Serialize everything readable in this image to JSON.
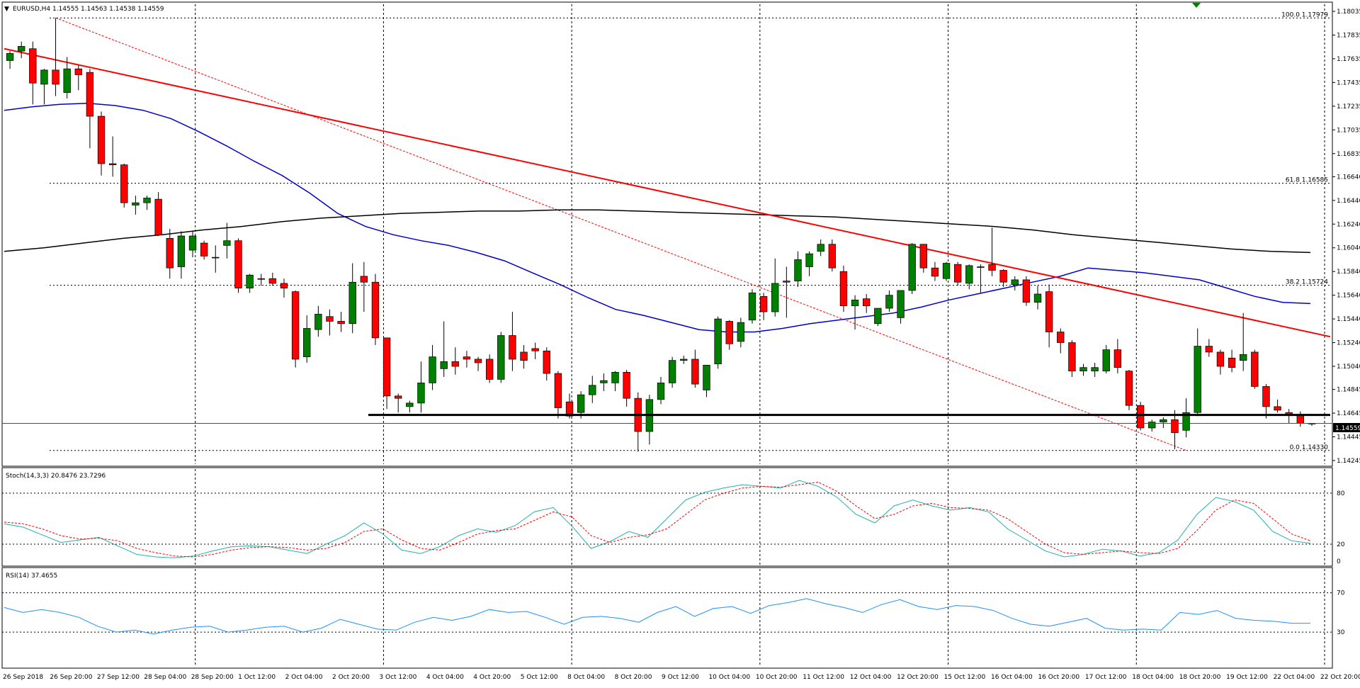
{
  "chart_data": {
    "type": "candlestick",
    "symbol": "EURUSD",
    "timeframe": "H4",
    "header_label": "EURUSD,H4  1.14555 1.14563 1.14538 1.14559",
    "last_price": "1.14559",
    "x_labels": [
      "26 Sep 2018",
      "26 Sep 20:00",
      "27 Sep 12:00",
      "28 Sep 04:00",
      "28 Sep 20:00",
      "1 Oct 12:00",
      "2 Oct 04:00",
      "2 Oct 20:00",
      "3 Oct 12:00",
      "4 Oct 04:00",
      "4 Oct 20:00",
      "5 Oct 12:00",
      "8 Oct 04:00",
      "8 Oct 20:00",
      "9 Oct 12:00",
      "10 Oct 04:00",
      "10 Oct 20:00",
      "11 Oct 12:00",
      "12 Oct 04:00",
      "12 Oct 20:00",
      "15 Oct 12:00",
      "16 Oct 04:00",
      "16 Oct 20:00",
      "17 Oct 12:00",
      "18 Oct 04:00",
      "18 Oct 20:00",
      "19 Oct 12:00",
      "22 Oct 04:00",
      "22 Oct 20:00"
    ],
    "y_ticks_main": [
      "1.18035",
      "1.17835",
      "1.17635",
      "1.17435",
      "1.17235",
      "1.17035",
      "1.16835",
      "1.16640",
      "1.16440",
      "1.16240",
      "1.16040",
      "1.15840",
      "1.15640",
      "1.15440",
      "1.15240",
      "1.15040",
      "1.14845",
      "1.14645",
      "1.14445",
      "1.14245"
    ],
    "y_range_main": [
      1.14215,
      1.18095
    ],
    "candles": [
      {
        "o": 1.1762,
        "h": 1.177,
        "l": 1.1755,
        "c": 1.1768
      },
      {
        "o": 1.177,
        "h": 1.1778,
        "l": 1.1764,
        "c": 1.1774
      },
      {
        "o": 1.1772,
        "h": 1.1778,
        "l": 1.1725,
        "c": 1.1743
      },
      {
        "o": 1.1742,
        "h": 1.1755,
        "l": 1.1725,
        "c": 1.1754
      },
      {
        "o": 1.1754,
        "h": 1.1798,
        "l": 1.1732,
        "c": 1.1742
      },
      {
        "o": 1.1735,
        "h": 1.1765,
        "l": 1.173,
        "c": 1.1755
      },
      {
        "o": 1.1755,
        "h": 1.1758,
        "l": 1.1737,
        "c": 1.175
      },
      {
        "o": 1.1752,
        "h": 1.1755,
        "l": 1.1688,
        "c": 1.1715
      },
      {
        "o": 1.1715,
        "h": 1.1719,
        "l": 1.1665,
        "c": 1.1675
      },
      {
        "o": 1.1675,
        "h": 1.1698,
        "l": 1.1664,
        "c": 1.1674
      },
      {
        "o": 1.1674,
        "h": 1.1675,
        "l": 1.1638,
        "c": 1.1642
      },
      {
        "o": 1.164,
        "h": 1.1648,
        "l": 1.1632,
        "c": 1.1642
      },
      {
        "o": 1.1642,
        "h": 1.1648,
        "l": 1.1636,
        "c": 1.1646
      },
      {
        "o": 1.1645,
        "h": 1.1651,
        "l": 1.1614,
        "c": 1.1615
      },
      {
        "o": 1.1612,
        "h": 1.162,
        "l": 1.1578,
        "c": 1.1587
      },
      {
        "o": 1.1588,
        "h": 1.1618,
        "l": 1.1578,
        "c": 1.1614
      },
      {
        "o": 1.1602,
        "h": 1.1618,
        "l": 1.1596,
        "c": 1.1614
      },
      {
        "o": 1.1608,
        "h": 1.161,
        "l": 1.1594,
        "c": 1.1597
      },
      {
        "o": 1.1596,
        "h": 1.1606,
        "l": 1.1583,
        "c": 1.1596
      },
      {
        "o": 1.1606,
        "h": 1.1625,
        "l": 1.1595,
        "c": 1.161
      },
      {
        "o": 1.161,
        "h": 1.1612,
        "l": 1.1566,
        "c": 1.157
      },
      {
        "o": 1.157,
        "h": 1.1582,
        "l": 1.1566,
        "c": 1.1581
      },
      {
        "o": 1.1578,
        "h": 1.1582,
        "l": 1.1572,
        "c": 1.1578
      },
      {
        "o": 1.1578,
        "h": 1.1583,
        "l": 1.1572,
        "c": 1.1574
      },
      {
        "o": 1.1574,
        "h": 1.1578,
        "l": 1.1562,
        "c": 1.157
      },
      {
        "o": 1.1567,
        "h": 1.1568,
        "l": 1.1503,
        "c": 1.151
      },
      {
        "o": 1.1512,
        "h": 1.1547,
        "l": 1.1507,
        "c": 1.1536
      },
      {
        "o": 1.1535,
        "h": 1.1555,
        "l": 1.1529,
        "c": 1.1548
      },
      {
        "o": 1.1546,
        "h": 1.1552,
        "l": 1.153,
        "c": 1.1542
      },
      {
        "o": 1.1542,
        "h": 1.155,
        "l": 1.1533,
        "c": 1.154
      },
      {
        "o": 1.154,
        "h": 1.1591,
        "l": 1.1532,
        "c": 1.1575
      },
      {
        "o": 1.158,
        "h": 1.1592,
        "l": 1.155,
        "c": 1.1575
      },
      {
        "o": 1.1575,
        "h": 1.1582,
        "l": 1.1522,
        "c": 1.1528
      },
      {
        "o": 1.1528,
        "h": 1.1528,
        "l": 1.1468,
        "c": 1.1479
      },
      {
        "o": 1.1479,
        "h": 1.1481,
        "l": 1.1465,
        "c": 1.1477
      },
      {
        "o": 1.147,
        "h": 1.1475,
        "l": 1.1465,
        "c": 1.1473
      },
      {
        "o": 1.1473,
        "h": 1.1508,
        "l": 1.1465,
        "c": 1.149
      },
      {
        "o": 1.149,
        "h": 1.1522,
        "l": 1.1484,
        "c": 1.1512
      },
      {
        "o": 1.1502,
        "h": 1.1542,
        "l": 1.1495,
        "c": 1.1508
      },
      {
        "o": 1.1508,
        "h": 1.152,
        "l": 1.1497,
        "c": 1.1504
      },
      {
        "o": 1.1512,
        "h": 1.1517,
        "l": 1.1503,
        "c": 1.151
      },
      {
        "o": 1.151,
        "h": 1.1512,
        "l": 1.15,
        "c": 1.1507
      },
      {
        "o": 1.151,
        "h": 1.1514,
        "l": 1.149,
        "c": 1.1493
      },
      {
        "o": 1.1493,
        "h": 1.1533,
        "l": 1.149,
        "c": 1.153
      },
      {
        "o": 1.153,
        "h": 1.155,
        "l": 1.15,
        "c": 1.151
      },
      {
        "o": 1.1516,
        "h": 1.1522,
        "l": 1.1502,
        "c": 1.1509
      },
      {
        "o": 1.1519,
        "h": 1.1524,
        "l": 1.151,
        "c": 1.1517
      },
      {
        "o": 1.1517,
        "h": 1.152,
        "l": 1.1492,
        "c": 1.1498
      },
      {
        "o": 1.1498,
        "h": 1.15,
        "l": 1.146,
        "c": 1.1469
      },
      {
        "o": 1.1474,
        "h": 1.1481,
        "l": 1.146,
        "c": 1.1462
      },
      {
        "o": 1.1465,
        "h": 1.1483,
        "l": 1.146,
        "c": 1.148
      },
      {
        "o": 1.148,
        "h": 1.1496,
        "l": 1.1473,
        "c": 1.1488
      },
      {
        "o": 1.149,
        "h": 1.1498,
        "l": 1.1483,
        "c": 1.1492
      },
      {
        "o": 1.149,
        "h": 1.15,
        "l": 1.1483,
        "c": 1.1499
      },
      {
        "o": 1.1499,
        "h": 1.1501,
        "l": 1.147,
        "c": 1.1477
      },
      {
        "o": 1.1477,
        "h": 1.1482,
        "l": 1.1432,
        "c": 1.1449
      },
      {
        "o": 1.1449,
        "h": 1.148,
        "l": 1.1438,
        "c": 1.1476
      },
      {
        "o": 1.1476,
        "h": 1.1495,
        "l": 1.1472,
        "c": 1.149
      },
      {
        "o": 1.149,
        "h": 1.1512,
        "l": 1.1486,
        "c": 1.1509
      },
      {
        "o": 1.1509,
        "h": 1.1513,
        "l": 1.1506,
        "c": 1.151
      },
      {
        "o": 1.151,
        "h": 1.1518,
        "l": 1.1486,
        "c": 1.1489
      },
      {
        "o": 1.1484,
        "h": 1.1504,
        "l": 1.1478,
        "c": 1.1505
      },
      {
        "o": 1.1506,
        "h": 1.1546,
        "l": 1.1502,
        "c": 1.1544
      },
      {
        "o": 1.1542,
        "h": 1.1543,
        "l": 1.1518,
        "c": 1.1523
      },
      {
        "o": 1.1525,
        "h": 1.1545,
        "l": 1.152,
        "c": 1.1541
      },
      {
        "o": 1.1543,
        "h": 1.1569,
        "l": 1.154,
        "c": 1.1566
      },
      {
        "o": 1.1563,
        "h": 1.1566,
        "l": 1.1543,
        "c": 1.155
      },
      {
        "o": 1.155,
        "h": 1.1595,
        "l": 1.1546,
        "c": 1.1574
      },
      {
        "o": 1.1575,
        "h": 1.1588,
        "l": 1.1545,
        "c": 1.1576
      },
      {
        "o": 1.1576,
        "h": 1.1601,
        "l": 1.1571,
        "c": 1.1594
      },
      {
        "o": 1.1588,
        "h": 1.1601,
        "l": 1.158,
        "c": 1.1599
      },
      {
        "o": 1.1601,
        "h": 1.1611,
        "l": 1.1597,
        "c": 1.1607
      },
      {
        "o": 1.1607,
        "h": 1.1611,
        "l": 1.1584,
        "c": 1.1587
      },
      {
        "o": 1.1584,
        "h": 1.1589,
        "l": 1.155,
        "c": 1.1555
      },
      {
        "o": 1.1555,
        "h": 1.1564,
        "l": 1.1535,
        "c": 1.156
      },
      {
        "o": 1.1561,
        "h": 1.1565,
        "l": 1.1549,
        "c": 1.1555
      },
      {
        "o": 1.154,
        "h": 1.1553,
        "l": 1.1538,
        "c": 1.1553
      },
      {
        "o": 1.1553,
        "h": 1.1568,
        "l": 1.155,
        "c": 1.1564
      },
      {
        "o": 1.1545,
        "h": 1.1568,
        "l": 1.154,
        "c": 1.1568
      },
      {
        "o": 1.1568,
        "h": 1.1608,
        "l": 1.1565,
        "c": 1.1607
      },
      {
        "o": 1.1607,
        "h": 1.1607,
        "l": 1.1583,
        "c": 1.1587
      },
      {
        "o": 1.1587,
        "h": 1.1592,
        "l": 1.1576,
        "c": 1.158
      },
      {
        "o": 1.1578,
        "h": 1.1592,
        "l": 1.1576,
        "c": 1.1591
      },
      {
        "o": 1.159,
        "h": 1.1592,
        "l": 1.1572,
        "c": 1.1575
      },
      {
        "o": 1.1574,
        "h": 1.159,
        "l": 1.1569,
        "c": 1.1589
      },
      {
        "o": 1.1588,
        "h": 1.159,
        "l": 1.1566,
        "c": 1.1588
      },
      {
        "o": 1.159,
        "h": 1.1621,
        "l": 1.158,
        "c": 1.1585
      },
      {
        "o": 1.1585,
        "h": 1.1586,
        "l": 1.1571,
        "c": 1.1575
      },
      {
        "o": 1.1573,
        "h": 1.158,
        "l": 1.1568,
        "c": 1.1577
      },
      {
        "o": 1.1577,
        "h": 1.158,
        "l": 1.1555,
        "c": 1.1558
      },
      {
        "o": 1.1558,
        "h": 1.1572,
        "l": 1.1552,
        "c": 1.1565
      },
      {
        "o": 1.1567,
        "h": 1.1573,
        "l": 1.152,
        "c": 1.1533
      },
      {
        "o": 1.1533,
        "h": 1.1536,
        "l": 1.1515,
        "c": 1.1524
      },
      {
        "o": 1.1524,
        "h": 1.1526,
        "l": 1.1495,
        "c": 1.15
      },
      {
        "o": 1.15,
        "h": 1.1506,
        "l": 1.1496,
        "c": 1.1503
      },
      {
        "o": 1.15,
        "h": 1.1507,
        "l": 1.1495,
        "c": 1.1503
      },
      {
        "o": 1.15,
        "h": 1.1522,
        "l": 1.1498,
        "c": 1.1518
      },
      {
        "o": 1.1518,
        "h": 1.1527,
        "l": 1.1498,
        "c": 1.1503
      },
      {
        "o": 1.15,
        "h": 1.1501,
        "l": 1.1467,
        "c": 1.1471
      },
      {
        "o": 1.1471,
        "h": 1.1474,
        "l": 1.145,
        "c": 1.1452
      },
      {
        "o": 1.1452,
        "h": 1.1459,
        "l": 1.1449,
        "c": 1.1457
      },
      {
        "o": 1.1457,
        "h": 1.1461,
        "l": 1.1452,
        "c": 1.1459
      },
      {
        "o": 1.1459,
        "h": 1.1467,
        "l": 1.1434,
        "c": 1.1448
      },
      {
        "o": 1.145,
        "h": 1.1477,
        "l": 1.1444,
        "c": 1.1465
      },
      {
        "o": 1.1465,
        "h": 1.1536,
        "l": 1.1462,
        "c": 1.1521
      },
      {
        "o": 1.1521,
        "h": 1.1527,
        "l": 1.1512,
        "c": 1.1516
      },
      {
        "o": 1.1516,
        "h": 1.1518,
        "l": 1.1497,
        "c": 1.1504
      },
      {
        "o": 1.1511,
        "h": 1.1518,
        "l": 1.1499,
        "c": 1.1503
      },
      {
        "o": 1.1509,
        "h": 1.1549,
        "l": 1.15,
        "c": 1.1514
      },
      {
        "o": 1.1516,
        "h": 1.1518,
        "l": 1.1485,
        "c": 1.1487
      },
      {
        "o": 1.1487,
        "h": 1.1489,
        "l": 1.146,
        "c": 1.147
      },
      {
        "o": 1.147,
        "h": 1.1476,
        "l": 1.1465,
        "c": 1.1467
      },
      {
        "o": 1.1465,
        "h": 1.1468,
        "l": 1.1456,
        "c": 1.1463
      },
      {
        "o": 1.1463,
        "h": 1.1466,
        "l": 1.1453,
        "c": 1.1456
      },
      {
        "o": 1.14555,
        "h": 1.14563,
        "l": 1.14538,
        "c": 1.14559
      }
    ],
    "ma_blue": [
      1.172,
      1.1723,
      1.1725,
      1.1726,
      1.1724,
      1.172,
      1.1713,
      1.1702,
      1.169,
      1.1677,
      1.1665,
      1.165,
      1.1633,
      1.1622,
      1.1615,
      1.161,
      1.1606,
      1.16,
      1.1593,
      1.1583,
      1.1573,
      1.1562,
      1.1552,
      1.1547,
      1.1541,
      1.1535,
      1.1533,
      1.1533,
      1.1536,
      1.154,
      1.1543,
      1.1546,
      1.1549,
      1.1554,
      1.156,
      1.1565,
      1.157,
      1.1575,
      1.158,
      1.1587,
      1.1585,
      1.1583,
      1.158,
      1.1577,
      1.157,
      1.1563,
      1.1558,
      1.1557
    ],
    "ma_black": [
      1.1601,
      1.1604,
      1.1608,
      1.1612,
      1.1615,
      1.1619,
      1.1622,
      1.1626,
      1.1629,
      1.1631,
      1.1633,
      1.1634,
      1.1635,
      1.1635,
      1.1636,
      1.1636,
      1.1635,
      1.1634,
      1.1633,
      1.1632,
      1.1631,
      1.163,
      1.1628,
      1.1626,
      1.1624,
      1.1622,
      1.1619,
      1.1615,
      1.1612,
      1.1609,
      1.1606,
      1.1603,
      1.1601,
      1.16
    ],
    "trendline": {
      "from": 1.1772,
      "to": 1.1529
    },
    "fib_diagonal": {
      "from": 1.1798,
      "to": 1.1433
    },
    "support_price": 1.1463,
    "fib_levels": [
      {
        "label": "100.0  1.17979",
        "price": 1.17979
      },
      {
        "label": "61.8  1.16585",
        "price": 1.16585
      },
      {
        "label": "38.2  1.15724",
        "price": 1.15724
      },
      {
        "label": "0.0  1.14330",
        "price": 1.1433
      }
    ],
    "stoch": {
      "label": "Stoch(14,3,3) 20.8476 23.7296",
      "ticks": [
        "80",
        "20",
        "0"
      ],
      "main": [
        44,
        40,
        31,
        22,
        25,
        28,
        18,
        8,
        5,
        4,
        6,
        12,
        17,
        18,
        17,
        13,
        9,
        20,
        30,
        45,
        32,
        13,
        9,
        17,
        30,
        38,
        34,
        42,
        58,
        63,
        41,
        15,
        23,
        35,
        28,
        50,
        72,
        81,
        86,
        90,
        88,
        86,
        95,
        88,
        75,
        55,
        45,
        65,
        72,
        65,
        60,
        63,
        58,
        38,
        25,
        12,
        5,
        8,
        14,
        12,
        6,
        10,
        25,
        55,
        75,
        70,
        60,
        35,
        24,
        21
      ],
      "signal": [
        46,
        44,
        38,
        30,
        26,
        27,
        24,
        15,
        10,
        6,
        5,
        8,
        13,
        16,
        17,
        16,
        13,
        15,
        22,
        35,
        38,
        25,
        15,
        13,
        22,
        32,
        36,
        38,
        48,
        58,
        52,
        30,
        22,
        28,
        31,
        38,
        55,
        72,
        80,
        86,
        88,
        87,
        90,
        93,
        82,
        65,
        50,
        55,
        65,
        68,
        63,
        62,
        60,
        50,
        35,
        20,
        10,
        8,
        10,
        12,
        10,
        9,
        15,
        36,
        60,
        72,
        68,
        50,
        32,
        24
      ]
    },
    "rsi": {
      "label": "RSI(14) 37.4655",
      "ticks": [
        "70",
        "30"
      ],
      "values": [
        55,
        50,
        53,
        50,
        45,
        36,
        30,
        32,
        28,
        32,
        35,
        36,
        30,
        32,
        35,
        36,
        30,
        34,
        43,
        38,
        33,
        32,
        40,
        45,
        42,
        46,
        53,
        50,
        51,
        45,
        38,
        45,
        46,
        44,
        40,
        50,
        56,
        46,
        54,
        56,
        49,
        57,
        60,
        64,
        59,
        55,
        50,
        58,
        63,
        56,
        53,
        57,
        56,
        52,
        44,
        38,
        36,
        40,
        44,
        34,
        32,
        33,
        32,
        50,
        48,
        52,
        44,
        42,
        41,
        39,
        39
      ]
    },
    "colors": {
      "bull": "#008000",
      "bear": "#ff0000",
      "ma_fast": "#0000cd",
      "ma_slow": "#000000",
      "trendline": "#ff0000",
      "fib": "#ff0000",
      "stoch_main": "#20b2aa",
      "stoch_signal": "#ff0000",
      "rsi": "#1e90ff",
      "price_line": "#008000"
    }
  }
}
